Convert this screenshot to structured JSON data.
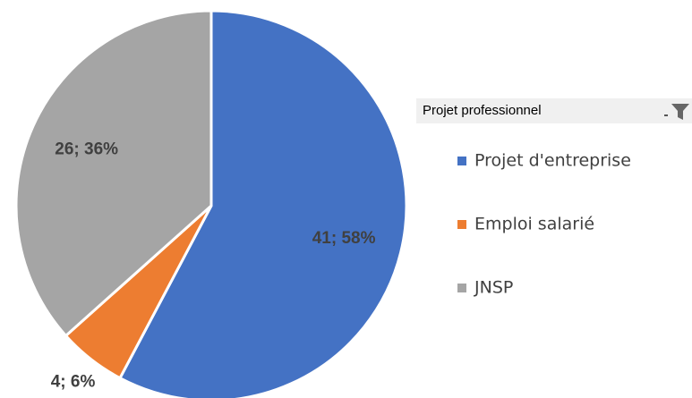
{
  "chart_data": {
    "type": "pie",
    "legend_title": "Projet professionnel",
    "categories": [
      "Projet d'entreprise",
      "Emploi salarié",
      "JNSP"
    ],
    "values": [
      41,
      4,
      26
    ],
    "value_labels": [
      "41; 58%",
      "4; 6%",
      "26; 36%"
    ],
    "colors": [
      "#4472c4",
      "#ed7d31",
      "#a5a5a5"
    ]
  }
}
